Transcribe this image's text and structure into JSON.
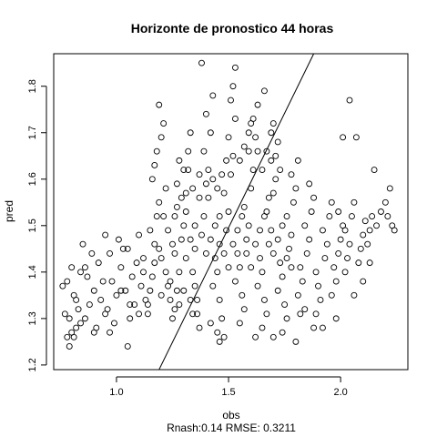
{
  "chart_data": {
    "type": "scatter",
    "title": "Horizonte de pronostico 44 horas",
    "xlabel": "obs",
    "ylabel": "pred",
    "subtitle": "Rnash:0.14 RMSE: 0.3211",
    "xlim": [
      0.72,
      2.3
    ],
    "ylim": [
      1.19,
      1.87
    ],
    "x_ticks": [
      1.0,
      1.5,
      2.0
    ],
    "x_tick_labels": [
      "1.0",
      "1.5",
      "2.0"
    ],
    "y_ticks": [
      1.2,
      1.3,
      1.4,
      1.5,
      1.6,
      1.7,
      1.8
    ],
    "y_tick_labels": [
      "1.2",
      "1.3",
      "1.4",
      "1.5",
      "1.6",
      "1.7",
      "1.8"
    ],
    "grid": false,
    "legend": "none",
    "reference_line": {
      "slope": 0.0,
      "intercept": 0.0,
      "from": [
        1.19,
        1.19
      ],
      "to": [
        1.88,
        1.88
      ]
    },
    "series": [
      {
        "points": [
          [
            0.78,
            1.26
          ],
          [
            0.8,
            1.27
          ],
          [
            0.82,
            1.28
          ],
          [
            0.79,
            1.3
          ],
          [
            0.83,
            1.32
          ],
          [
            0.81,
            1.35
          ],
          [
            0.78,
            1.38
          ],
          [
            0.84,
            1.4
          ],
          [
            0.8,
            1.41
          ],
          [
            0.76,
            1.37
          ],
          [
            0.86,
            1.3
          ],
          [
            0.88,
            1.33
          ],
          [
            0.9,
            1.36
          ],
          [
            0.87,
            1.39
          ],
          [
            0.92,
            1.42
          ],
          [
            0.89,
            1.44
          ],
          [
            0.85,
            1.46
          ],
          [
            0.93,
            1.34
          ],
          [
            0.95,
            1.31
          ],
          [
            0.91,
            1.28
          ],
          [
            0.97,
            1.27
          ],
          [
            0.99,
            1.29
          ],
          [
            0.96,
            1.32
          ],
          [
            1.0,
            1.35
          ],
          [
            0.98,
            1.38
          ],
          [
            1.02,
            1.41
          ],
          [
            0.97,
            1.44
          ],
          [
            1.01,
            1.47
          ],
          [
            0.95,
            1.48
          ],
          [
            1.03,
            1.45
          ],
          [
            1.05,
            1.24
          ],
          [
            1.06,
            1.3
          ],
          [
            1.08,
            1.33
          ],
          [
            1.04,
            1.36
          ],
          [
            1.07,
            1.39
          ],
          [
            1.09,
            1.42
          ],
          [
            1.05,
            1.45
          ],
          [
            1.1,
            1.48
          ],
          [
            1.12,
            1.4
          ],
          [
            1.11,
            1.37
          ],
          [
            1.13,
            1.34
          ],
          [
            1.14,
            1.31
          ],
          [
            1.15,
            1.36
          ],
          [
            1.16,
            1.39
          ],
          [
            1.12,
            1.43
          ],
          [
            1.17,
            1.46
          ],
          [
            1.15,
            1.49
          ],
          [
            1.18,
            1.52
          ],
          [
            1.19,
            1.55
          ],
          [
            1.16,
            1.6
          ],
          [
            1.17,
            1.63
          ],
          [
            1.18,
            1.66
          ],
          [
            1.2,
            1.69
          ],
          [
            1.21,
            1.72
          ],
          [
            1.19,
            1.76
          ],
          [
            1.22,
            1.58
          ],
          [
            1.2,
            1.43
          ],
          [
            1.22,
            1.4
          ],
          [
            1.23,
            1.37
          ],
          [
            1.24,
            1.34
          ],
          [
            1.25,
            1.3
          ],
          [
            1.26,
            1.32
          ],
          [
            1.27,
            1.36
          ],
          [
            1.28,
            1.4
          ],
          [
            1.26,
            1.44
          ],
          [
            1.29,
            1.47
          ],
          [
            1.3,
            1.5
          ],
          [
            1.27,
            1.54
          ],
          [
            1.31,
            1.57
          ],
          [
            1.3,
            1.62
          ],
          [
            1.32,
            1.66
          ],
          [
            1.33,
            1.7
          ],
          [
            1.31,
            1.43
          ],
          [
            1.34,
            1.4
          ],
          [
            1.35,
            1.37
          ],
          [
            1.33,
            1.34
          ],
          [
            1.36,
            1.31
          ],
          [
            1.37,
            1.28
          ],
          [
            1.35,
            1.45
          ],
          [
            1.38,
            1.48
          ],
          [
            1.39,
            1.52
          ],
          [
            1.37,
            1.56
          ],
          [
            1.4,
            1.59
          ],
          [
            1.41,
            1.62
          ],
          [
            1.39,
            1.66
          ],
          [
            1.42,
            1.7
          ],
          [
            1.4,
            1.74
          ],
          [
            1.43,
            1.78
          ],
          [
            1.38,
            1.85
          ],
          [
            1.44,
            1.43
          ],
          [
            1.45,
            1.4
          ],
          [
            1.43,
            1.37
          ],
          [
            1.46,
            1.34
          ],
          [
            1.47,
            1.3
          ],
          [
            1.45,
            1.27
          ],
          [
            1.48,
            1.26
          ],
          [
            1.46,
            1.46
          ],
          [
            1.49,
            1.49
          ],
          [
            1.5,
            1.53
          ],
          [
            1.48,
            1.57
          ],
          [
            1.51,
            1.61
          ],
          [
            1.52,
            1.65
          ],
          [
            1.5,
            1.69
          ],
          [
            1.53,
            1.73
          ],
          [
            1.51,
            1.77
          ],
          [
            1.52,
            1.8
          ],
          [
            1.53,
            1.84
          ],
          [
            1.54,
            1.44
          ],
          [
            1.55,
            1.41
          ],
          [
            1.53,
            1.38
          ],
          [
            1.56,
            1.35
          ],
          [
            1.57,
            1.32
          ],
          [
            1.55,
            1.29
          ],
          [
            1.58,
            1.47
          ],
          [
            1.59,
            1.5
          ],
          [
            1.57,
            1.54
          ],
          [
            1.6,
            1.58
          ],
          [
            1.61,
            1.62
          ],
          [
            1.59,
            1.66
          ],
          [
            1.62,
            1.69
          ],
          [
            1.6,
            1.72
          ],
          [
            1.63,
            1.76
          ],
          [
            1.64,
            1.43
          ],
          [
            1.65,
            1.4
          ],
          [
            1.63,
            1.37
          ],
          [
            1.66,
            1.34
          ],
          [
            1.67,
            1.31
          ],
          [
            1.65,
            1.28
          ],
          [
            1.68,
            1.46
          ],
          [
            1.69,
            1.49
          ],
          [
            1.67,
            1.53
          ],
          [
            1.7,
            1.57
          ],
          [
            1.71,
            1.6
          ],
          [
            1.69,
            1.64
          ],
          [
            1.72,
            1.68
          ],
          [
            1.7,
            1.72
          ],
          [
            1.66,
            1.79
          ],
          [
            1.73,
            1.42
          ],
          [
            1.74,
            1.39
          ],
          [
            1.72,
            1.36
          ],
          [
            1.75,
            1.33
          ],
          [
            1.76,
            1.3
          ],
          [
            1.74,
            1.27
          ],
          [
            1.77,
            1.45
          ],
          [
            1.78,
            1.48
          ],
          [
            1.76,
            1.52
          ],
          [
            1.79,
            1.55
          ],
          [
            1.8,
            1.58
          ],
          [
            1.78,
            1.61
          ],
          [
            1.81,
            1.64
          ],
          [
            1.82,
            1.41
          ],
          [
            1.83,
            1.38
          ],
          [
            1.81,
            1.35
          ],
          [
            1.84,
            1.32
          ],
          [
            1.85,
            1.44
          ],
          [
            1.86,
            1.47
          ],
          [
            1.84,
            1.5
          ],
          [
            1.87,
            1.53
          ],
          [
            1.88,
            1.56
          ],
          [
            1.86,
            1.59
          ],
          [
            1.89,
            1.4
          ],
          [
            1.9,
            1.37
          ],
          [
            1.91,
            1.34
          ],
          [
            1.89,
            1.31
          ],
          [
            1.92,
            1.28
          ],
          [
            1.93,
            1.43
          ],
          [
            1.94,
            1.46
          ],
          [
            1.92,
            1.49
          ],
          [
            1.95,
            1.52
          ],
          [
            1.96,
            1.55
          ],
          [
            1.97,
            1.41
          ],
          [
            1.98,
            1.38
          ],
          [
            1.96,
            1.35
          ],
          [
            1.99,
            1.44
          ],
          [
            2.0,
            1.47
          ],
          [
            2.01,
            1.5
          ],
          [
            1.99,
            1.53
          ],
          [
            2.02,
            1.4
          ],
          [
            2.03,
            1.43
          ],
          [
            2.04,
            1.46
          ],
          [
            2.02,
            1.49
          ],
          [
            2.05,
            1.52
          ],
          [
            2.06,
            1.55
          ],
          [
            2.04,
            1.77
          ],
          [
            2.01,
            1.69
          ],
          [
            2.07,
            1.69
          ],
          [
            2.08,
            1.42
          ],
          [
            2.09,
            1.45
          ],
          [
            2.1,
            1.48
          ],
          [
            2.11,
            1.51
          ],
          [
            2.12,
            1.46
          ],
          [
            2.13,
            1.49
          ],
          [
            2.14,
            1.52
          ],
          [
            2.15,
            1.62
          ],
          [
            2.16,
            1.5
          ],
          [
            2.18,
            1.53
          ],
          [
            2.2,
            1.55
          ],
          [
            2.21,
            1.52
          ],
          [
            2.22,
            1.58
          ],
          [
            2.23,
            1.5
          ],
          [
            2.24,
            1.49
          ],
          [
            2.1,
            1.38
          ],
          [
            2.13,
            1.42
          ],
          [
            2.06,
            1.35
          ],
          [
            1.98,
            1.3
          ],
          [
            1.88,
            1.28
          ],
          [
            1.8,
            1.25
          ],
          [
            1.82,
            1.31
          ],
          [
            1.7,
            1.26
          ],
          [
            1.62,
            1.26
          ],
          [
            1.46,
            1.25
          ],
          [
            1.42,
            1.29
          ],
          [
            1.36,
            1.34
          ],
          [
            1.34,
            1.31
          ],
          [
            1.3,
            1.36
          ],
          [
            1.28,
            1.33
          ],
          [
            1.24,
            1.38
          ],
          [
            1.2,
            1.35
          ],
          [
            1.14,
            1.33
          ],
          [
            1.1,
            1.31
          ],
          [
            1.06,
            1.33
          ],
          [
            1.02,
            1.36
          ],
          [
            0.94,
            1.38
          ],
          [
            0.86,
            1.41
          ],
          [
            0.82,
            1.34
          ],
          [
            0.77,
            1.31
          ],
          [
            0.79,
            1.24
          ],
          [
            0.81,
            1.26
          ],
          [
            0.84,
            1.29
          ],
          [
            0.9,
            1.27
          ],
          [
            1.4,
            1.44
          ],
          [
            1.42,
            1.47
          ],
          [
            1.44,
            1.5
          ],
          [
            1.46,
            1.52
          ],
          [
            1.48,
            1.44
          ],
          [
            1.5,
            1.41
          ],
          [
            1.52,
            1.46
          ],
          [
            1.54,
            1.49
          ],
          [
            1.56,
            1.52
          ],
          [
            1.58,
            1.44
          ],
          [
            1.6,
            1.41
          ],
          [
            1.62,
            1.46
          ],
          [
            1.64,
            1.49
          ],
          [
            1.66,
            1.52
          ],
          [
            1.68,
            1.56
          ],
          [
            1.7,
            1.44
          ],
          [
            1.72,
            1.47
          ],
          [
            1.74,
            1.5
          ],
          [
            1.76,
            1.43
          ],
          [
            1.78,
            1.41
          ],
          [
            1.35,
            1.5
          ],
          [
            1.33,
            1.47
          ],
          [
            1.31,
            1.53
          ],
          [
            1.29,
            1.56
          ],
          [
            1.27,
            1.59
          ],
          [
            1.25,
            1.46
          ],
          [
            1.23,
            1.49
          ],
          [
            1.21,
            1.52
          ],
          [
            1.19,
            1.45
          ],
          [
            1.17,
            1.42
          ],
          [
            1.55,
            1.64
          ],
          [
            1.57,
            1.67
          ],
          [
            1.59,
            1.7
          ],
          [
            1.61,
            1.73
          ],
          [
            1.63,
            1.66
          ],
          [
            1.65,
            1.62
          ],
          [
            1.67,
            1.66
          ],
          [
            1.69,
            1.7
          ],
          [
            1.71,
            1.65
          ],
          [
            1.73,
            1.62
          ],
          [
            1.45,
            1.58
          ],
          [
            1.47,
            1.61
          ],
          [
            1.49,
            1.64
          ],
          [
            1.43,
            1.6
          ],
          [
            1.41,
            1.56
          ],
          [
            1.37,
            1.61
          ],
          [
            1.34,
            1.58
          ],
          [
            1.32,
            1.62
          ],
          [
            1.28,
            1.64
          ],
          [
            1.26,
            1.52
          ]
        ]
      }
    ]
  }
}
